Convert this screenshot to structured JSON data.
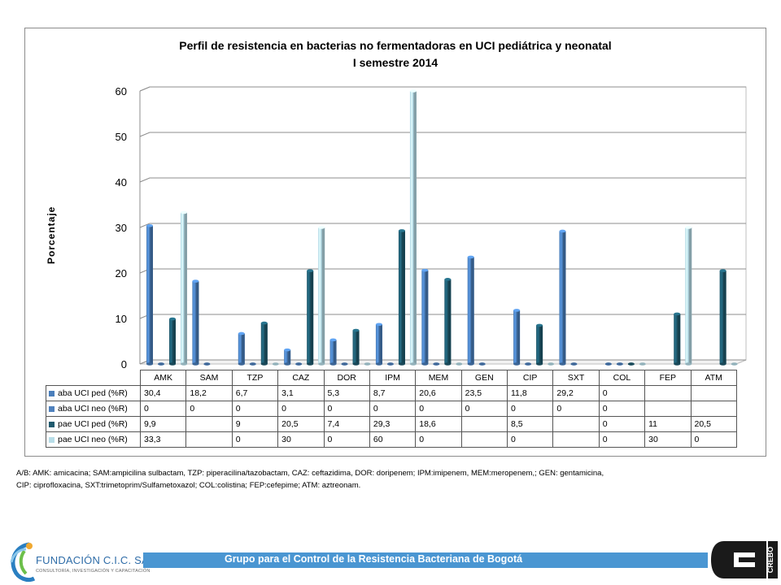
{
  "chart_data": {
    "type": "bar",
    "title": "Perfil de resistencia en bacterias no fermentadoras en UCI pediátrica y neonatal",
    "subtitle": "I semestre 2014",
    "ylabel": "Porcentaje",
    "xlabel": "",
    "ylim": [
      0,
      60
    ],
    "yticks": [
      0,
      10,
      20,
      30,
      40,
      50,
      60
    ],
    "grid": true,
    "legend": "data-table",
    "categories": [
      "AMK",
      "SAM",
      "TZP",
      "CAZ",
      "DOR",
      "IPM",
      "MEM",
      "GEN",
      "CIP",
      "SXT",
      "COL",
      "FEP",
      "ATM"
    ],
    "series": [
      {
        "name": "aba UCI ped (%R)",
        "color": "#4a7ebb",
        "values": [
          30.4,
          18.2,
          6.7,
          3.1,
          5.3,
          8.7,
          20.6,
          23.5,
          11.8,
          29.2,
          0,
          null,
          null
        ],
        "labels": [
          "30,4",
          "18,2",
          "6,7",
          "3,1",
          "5,3",
          "8,7",
          "20,6",
          "23,5",
          "11,8",
          "29,2",
          "0",
          "",
          ""
        ]
      },
      {
        "name": "aba UCI neo (%R)",
        "color": "#4f81bd",
        "values": [
          0,
          0,
          0,
          0,
          0,
          0,
          0,
          0,
          0,
          0,
          0,
          null,
          null
        ],
        "labels": [
          "0",
          "0",
          "0",
          "0",
          "0",
          "0",
          "0",
          "0",
          "0",
          "0",
          "0",
          "",
          ""
        ]
      },
      {
        "name": "pae UCI ped (%R)",
        "color": "#1f5a6e",
        "values": [
          9.9,
          null,
          9,
          20.5,
          7.4,
          29.3,
          18.6,
          null,
          8.5,
          null,
          0,
          11,
          20.5
        ],
        "labels": [
          "9,9",
          "",
          "9",
          "20,5",
          "7,4",
          "29,3",
          "18,6",
          "",
          "8,5",
          "",
          "0",
          "11",
          "20,5"
        ]
      },
      {
        "name": "pae UCI neo (%R)",
        "color": "#b7dde8",
        "values": [
          33.3,
          null,
          0,
          30,
          0,
          60,
          0,
          null,
          0,
          null,
          0,
          30,
          0
        ],
        "labels": [
          "33,3",
          "",
          "0",
          "30",
          "0",
          "60",
          "0",
          "",
          "0",
          "",
          "0",
          "30",
          "0"
        ]
      }
    ]
  },
  "footnote": {
    "line1": "A/B: AMK: amicacina; SAM:ampicilina sulbactam, TZP: piperacilina/tazobactam, CAZ: ceftazidima, DOR: doripenem;  IPM:imipenem, MEM:meropenem,; GEN: gentamicina,",
    "line2": "CIP: ciprofloxacina, SXT:trimetoprim/Sulfametoxazol; COL:colistina; FEP:cefepime; ATM: aztreonam."
  },
  "footer": {
    "brand_name": "FUNDACIÓN C.I.C. SALUD",
    "brand_sub": "CONSULTORÍA, INVESTIGACIÓN Y CAPACITACIÓN",
    "banner": "Grupo para el Control de la Resistencia Bacteriana de Bogotá",
    "logo_right_text": "CREBO"
  }
}
